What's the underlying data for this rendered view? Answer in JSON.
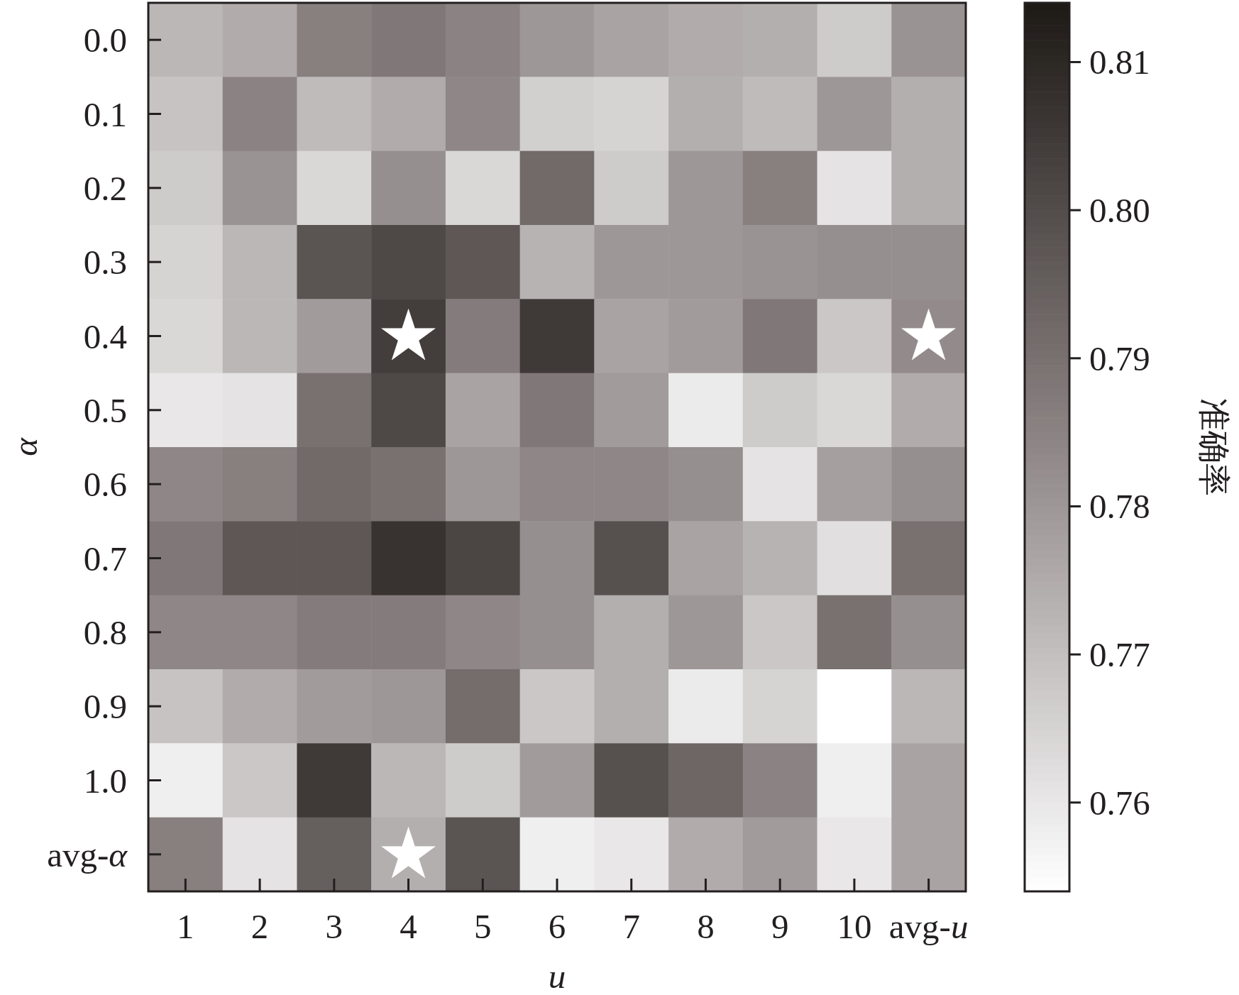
{
  "chart_data": {
    "type": "heatmap",
    "xlabel": "*u*",
    "ylabel": "*α*",
    "clabel": "准确率",
    "categories": [
      "1",
      "2",
      "3",
      "4",
      "5",
      "6",
      "7",
      "8",
      "9",
      "10",
      "avg-*u*"
    ],
    "y_categories": [
      "0.0",
      "0.1",
      "0.2",
      "0.3",
      "0.4",
      "0.5",
      "0.6",
      "0.7",
      "0.8",
      "0.9",
      "1.0",
      "avg-*α*"
    ],
    "cells": [
      [
        0.772,
        0.775,
        0.786,
        0.788,
        0.785,
        0.78,
        0.777,
        0.775,
        0.774,
        0.767,
        0.781
      ],
      [
        0.769,
        0.785,
        0.771,
        0.775,
        0.784,
        0.766,
        0.765,
        0.774,
        0.771,
        0.78,
        0.774
      ],
      [
        0.767,
        0.781,
        0.764,
        0.782,
        0.764,
        0.792,
        0.767,
        0.78,
        0.786,
        0.761,
        0.774
      ],
      [
        0.765,
        0.772,
        0.798,
        0.801,
        0.797,
        0.773,
        0.78,
        0.78,
        0.781,
        0.782,
        0.782
      ],
      [
        0.764,
        0.772,
        0.779,
        0.804,
        0.787,
        0.805,
        0.777,
        0.779,
        0.788,
        0.768,
        0.783
      ],
      [
        0.76,
        0.761,
        0.79,
        0.801,
        0.777,
        0.788,
        0.779,
        0.759,
        0.767,
        0.764,
        0.775
      ],
      [
        0.784,
        0.786,
        0.792,
        0.79,
        0.78,
        0.784,
        0.784,
        0.782,
        0.761,
        0.778,
        0.782
      ],
      [
        0.788,
        0.797,
        0.797,
        0.807,
        0.802,
        0.782,
        0.799,
        0.777,
        0.773,
        0.762,
        0.79
      ],
      [
        0.784,
        0.784,
        0.787,
        0.787,
        0.784,
        0.782,
        0.774,
        0.78,
        0.768,
        0.79,
        0.782
      ],
      [
        0.769,
        0.775,
        0.779,
        0.78,
        0.791,
        0.768,
        0.774,
        0.759,
        0.765,
        0.754,
        0.772
      ],
      [
        0.758,
        0.768,
        0.805,
        0.772,
        0.767,
        0.779,
        0.799,
        0.793,
        0.785,
        0.758,
        0.777
      ],
      [
        0.786,
        0.761,
        0.795,
        0.774,
        0.798,
        0.758,
        0.76,
        0.775,
        0.779,
        0.76,
        0.777
      ]
    ],
    "cell_labels": [
      [
        null,
        null,
        null,
        null,
        null,
        null,
        null,
        null,
        null,
        null,
        null
      ],
      [
        null,
        null,
        null,
        null,
        null,
        null,
        null,
        null,
        null,
        null,
        null
      ],
      [
        null,
        null,
        null,
        null,
        null,
        null,
        null,
        null,
        null,
        null,
        null
      ],
      [
        null,
        null,
        null,
        null,
        null,
        null,
        null,
        null,
        null,
        null,
        null
      ],
      [
        null,
        null,
        null,
        "★",
        null,
        null,
        null,
        null,
        null,
        null,
        "★"
      ],
      [
        null,
        null,
        null,
        null,
        null,
        null,
        null,
        null,
        null,
        null,
        null
      ],
      [
        null,
        null,
        null,
        null,
        null,
        null,
        null,
        null,
        null,
        null,
        null
      ],
      [
        null,
        null,
        null,
        null,
        null,
        null,
        null,
        null,
        null,
        null,
        null
      ],
      [
        null,
        null,
        null,
        null,
        null,
        null,
        null,
        null,
        null,
        null,
        null
      ],
      [
        null,
        null,
        null,
        null,
        null,
        null,
        null,
        null,
        null,
        null,
        null
      ],
      [
        null,
        null,
        null,
        null,
        null,
        null,
        null,
        null,
        null,
        null,
        null
      ],
      [
        null,
        null,
        null,
        "★",
        null,
        null,
        null,
        null,
        null,
        null,
        null
      ]
    ],
    "clim": [
      0.754,
      0.814
    ],
    "cticks": [
      {
        "value": 0.76,
        "label": "0.76"
      },
      {
        "value": 0.77,
        "label": "0.77"
      },
      {
        "value": 0.78,
        "label": "0.78"
      },
      {
        "value": 0.79,
        "label": "0.79"
      },
      {
        "value": 0.8,
        "label": "0.80"
      },
      {
        "value": 0.81,
        "label": "0.81"
      }
    ]
  }
}
